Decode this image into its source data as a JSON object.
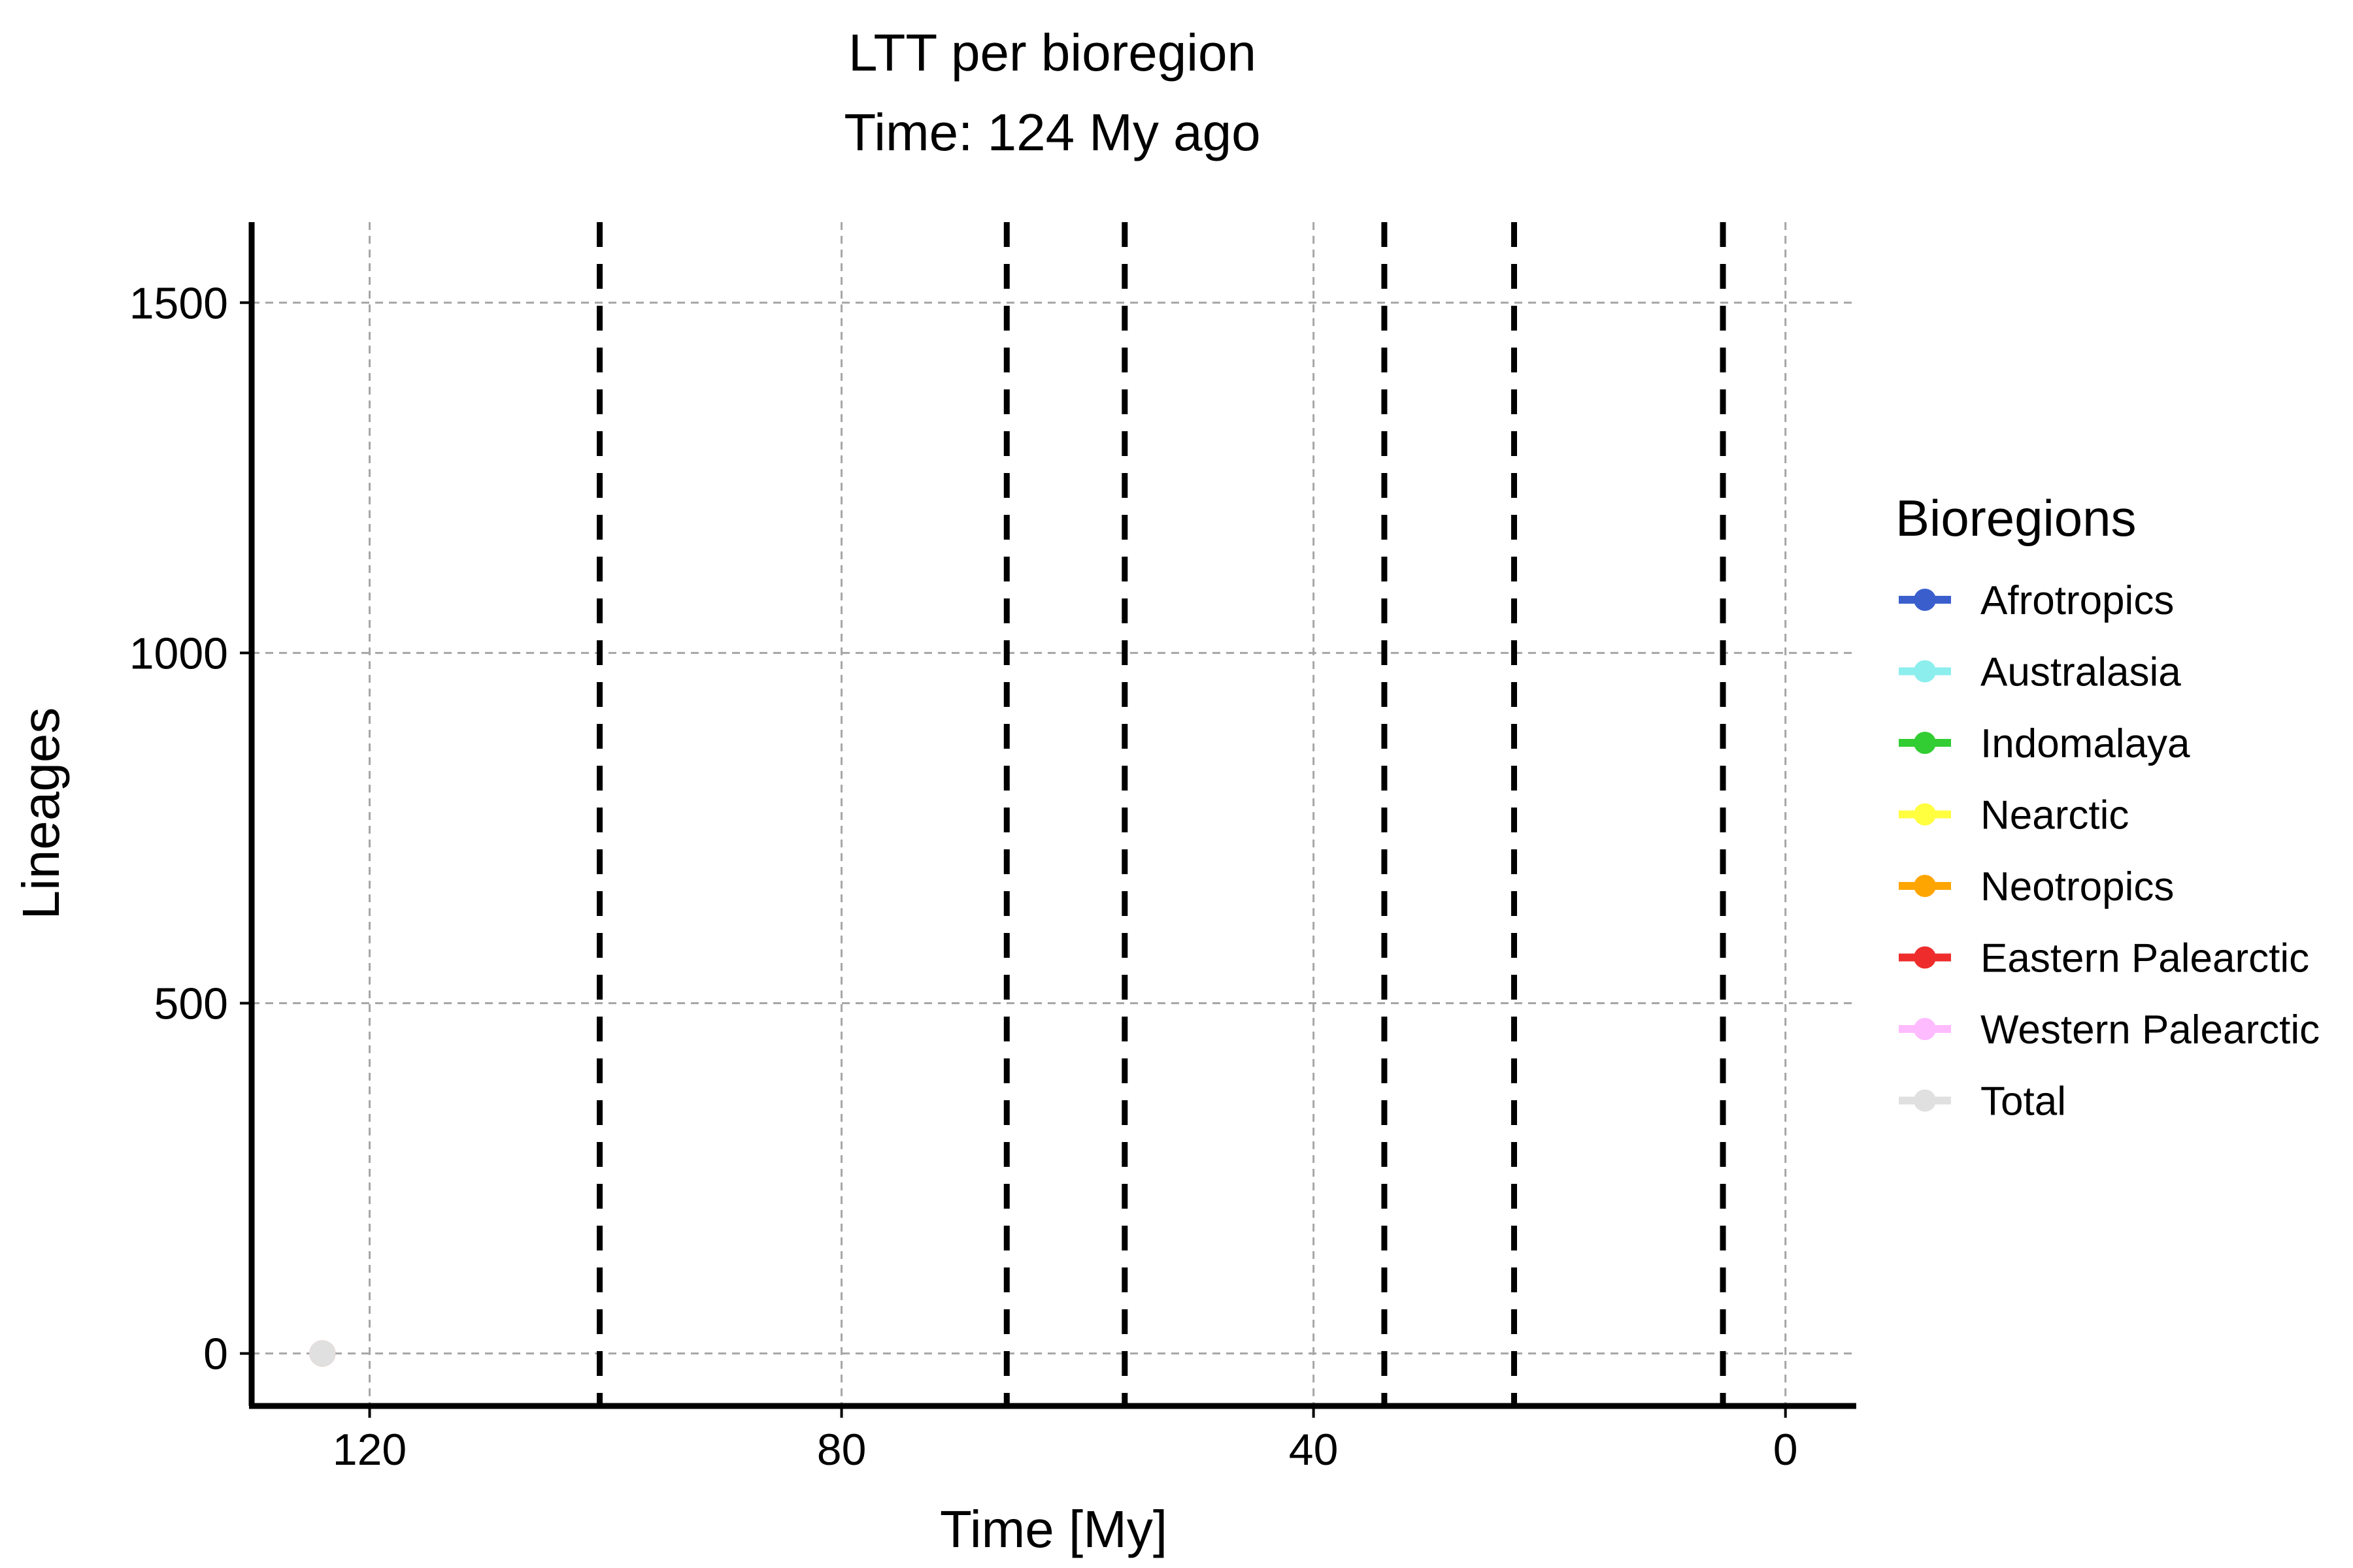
{
  "chart_data": {
    "type": "line",
    "title": "LTT per bioregion",
    "subtitle": "Time: 124 My ago",
    "xlabel": "Time  [My]",
    "ylabel": "Lineages",
    "xlim": [
      130,
      -6
    ],
    "ylim": [
      -75,
      1615
    ],
    "x_reversed": true,
    "x_ticks": [
      120,
      80,
      40,
      0
    ],
    "y_ticks": [
      0,
      500,
      1000,
      1500
    ],
    "grid": true,
    "legend_position": "right",
    "legend_title": "Bioregions",
    "vlines": [
      100.5,
      66,
      56,
      34,
      23,
      5.3
    ],
    "series": [
      {
        "name": "Afrotropics",
        "color": "#3a5fcd",
        "x": [
          124
        ],
        "y": [
          0
        ]
      },
      {
        "name": "Australasia",
        "color": "#8deeee",
        "x": [
          124
        ],
        "y": [
          0
        ]
      },
      {
        "name": "Indomalaya",
        "color": "#32cd32",
        "x": [
          124
        ],
        "y": [
          0
        ]
      },
      {
        "name": "Nearctic",
        "color": "#ffff40",
        "x": [
          124
        ],
        "y": [
          0
        ]
      },
      {
        "name": "Neotropics",
        "color": "#ffa500",
        "x": [
          124
        ],
        "y": [
          0
        ]
      },
      {
        "name": "Eastern Palearctic",
        "color": "#ee2c2c",
        "x": [
          124
        ],
        "y": [
          0
        ]
      },
      {
        "name": "Western Palearctic",
        "color": "#ffbbff",
        "x": [
          124
        ],
        "y": [
          0
        ]
      },
      {
        "name": "Total",
        "color": "#e0e0e0",
        "x": [
          124
        ],
        "y": [
          0
        ]
      }
    ]
  }
}
